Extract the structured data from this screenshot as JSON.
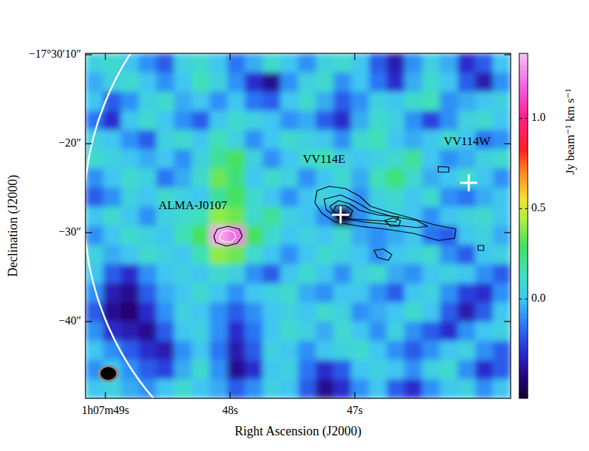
{
  "chart_data": {
    "type": "heatmap",
    "x_label": "Right Ascension (J2000)",
    "y_label": "Declination (J2000)",
    "xlim": [
      49.16,
      45.75
    ],
    "ylim": [
      -9.84,
      -48.64
    ],
    "xticks": [
      {
        "value": 49,
        "label": "1h07m49s"
      },
      {
        "value": 48,
        "label": "48s"
      },
      {
        "value": 47,
        "label": "47s"
      }
    ],
    "yticks": [
      {
        "value": -10,
        "label": "−17°30′10″"
      },
      {
        "value": -20,
        "label": "−20″"
      },
      {
        "value": -30,
        "label": "−30″"
      },
      {
        "value": -40,
        "label": "−40″"
      }
    ],
    "cells": [
      [
        0.05,
        0.1,
        0.0,
        -0.1,
        -0.2,
        0.05,
        0.1,
        0.0,
        -0.15,
        -0.05,
        0.1,
        0.0,
        -0.1,
        0.05,
        0.1,
        0.0,
        -0.2,
        -0.35,
        -0.1,
        0.05,
        -0.05,
        -0.3,
        -0.2,
        0.0
      ],
      [
        -0.05,
        0.05,
        0.1,
        0.0,
        -0.1,
        0.0,
        0.15,
        0.05,
        -0.1,
        -0.3,
        -0.4,
        -0.1,
        0.05,
        0.1,
        -0.1,
        0.0,
        -0.15,
        -0.3,
        -0.05,
        0.1,
        0.0,
        -0.2,
        -0.35,
        -0.1
      ],
      [
        0.0,
        -0.2,
        -0.1,
        0.05,
        0.1,
        -0.05,
        0.0,
        -0.1,
        0.0,
        -0.15,
        -0.2,
        0.0,
        0.1,
        -0.05,
        -0.2,
        -0.1,
        0.05,
        0.0,
        0.1,
        0.15,
        -0.1,
        -0.05,
        0.0,
        0.05
      ],
      [
        -0.15,
        -0.3,
        0.0,
        0.1,
        0.0,
        -0.1,
        -0.2,
        0.0,
        0.1,
        0.05,
        0.0,
        -0.1,
        -0.05,
        -0.2,
        -0.3,
        -0.05,
        0.1,
        0.05,
        -0.1,
        -0.25,
        -0.1,
        0.05,
        0.1,
        0.0
      ],
      [
        0.05,
        0.0,
        -0.1,
        -0.2,
        0.05,
        0.1,
        0.0,
        0.15,
        0.05,
        -0.1,
        0.0,
        0.1,
        0.05,
        0.0,
        -0.1,
        0.1,
        0.15,
        0.0,
        -0.05,
        0.0,
        0.1,
        0.0,
        -0.15,
        -0.1
      ],
      [
        0.1,
        0.05,
        0.0,
        -0.05,
        0.0,
        -0.1,
        0.05,
        0.2,
        0.3,
        0.05,
        -0.1,
        0.0,
        0.1,
        0.15,
        0.05,
        0.0,
        0.05,
        0.1,
        0.2,
        0.0,
        -0.1,
        -0.05,
        0.05,
        0.1
      ],
      [
        -0.1,
        0.0,
        0.1,
        0.05,
        -0.15,
        -0.05,
        0.1,
        0.35,
        0.25,
        0.0,
        0.1,
        0.05,
        -0.1,
        0.0,
        0.1,
        -0.05,
        0.15,
        0.25,
        0.1,
        -0.05,
        0.0,
        0.1,
        0.0,
        -0.1
      ],
      [
        -0.2,
        -0.1,
        0.05,
        0.0,
        0.1,
        0.05,
        0.0,
        0.2,
        0.3,
        0.1,
        0.0,
        -0.1,
        0.0,
        0.05,
        0.0,
        -0.1,
        0.05,
        0.1,
        0.0,
        0.1,
        -0.1,
        -0.15,
        -0.05,
        0.0
      ],
      [
        0.0,
        0.1,
        0.0,
        -0.1,
        0.05,
        0.1,
        0.15,
        0.4,
        0.35,
        0.1,
        0.2,
        0.05,
        0.0,
        -0.1,
        -0.5,
        -0.1,
        0.0,
        0.05,
        0.0,
        -0.1,
        0.0,
        0.05,
        0.1,
        0.0
      ],
      [
        -0.1,
        0.0,
        0.1,
        0.05,
        0.0,
        0.15,
        0.3,
        1.3,
        1.2,
        0.3,
        0.1,
        0.0,
        0.05,
        0.0,
        0.1,
        -0.05,
        -0.1,
        -0.05,
        0.0,
        -0.15,
        -0.2,
        0.0,
        0.05,
        -0.05
      ],
      [
        0.05,
        -0.05,
        0.0,
        0.1,
        0.05,
        0.0,
        0.15,
        0.4,
        0.35,
        0.1,
        0.0,
        -0.1,
        0.0,
        0.1,
        0.05,
        0.0,
        -0.1,
        0.0,
        0.05,
        0.1,
        -0.1,
        -0.2,
        0.0,
        0.05
      ],
      [
        0.0,
        -0.2,
        -0.3,
        -0.1,
        0.0,
        0.05,
        0.0,
        0.1,
        0.05,
        -0.1,
        -0.2,
        0.0,
        0.1,
        0.0,
        -0.1,
        0.05,
        0.1,
        -0.05,
        -0.1,
        0.0,
        0.05,
        0.0,
        -0.1,
        -0.2
      ],
      [
        -0.1,
        -0.35,
        -0.4,
        -0.2,
        -0.05,
        0.0,
        0.1,
        0.0,
        -0.1,
        0.0,
        0.05,
        0.1,
        -0.05,
        -0.1,
        0.0,
        0.0,
        -0.1,
        -0.2,
        0.0,
        0.05,
        -0.1,
        -0.25,
        -0.3,
        -0.1
      ],
      [
        -0.2,
        -0.4,
        -0.45,
        -0.3,
        -0.1,
        0.05,
        0.0,
        -0.1,
        -0.2,
        -0.1,
        0.0,
        0.05,
        0.0,
        0.1,
        0.05,
        -0.1,
        -0.05,
        0.0,
        0.1,
        0.0,
        -0.2,
        -0.35,
        -0.2,
        0.0
      ],
      [
        -0.1,
        -0.3,
        -0.35,
        -0.4,
        -0.2,
        0.0,
        0.05,
        -0.1,
        -0.3,
        -0.15,
        0.0,
        0.1,
        0.05,
        -0.05,
        0.1,
        0.0,
        -0.1,
        0.05,
        -0.1,
        -0.2,
        -0.3,
        -0.1,
        0.0,
        0.05
      ],
      [
        0.0,
        -0.1,
        -0.2,
        -0.3,
        -0.35,
        -0.1,
        0.0,
        -0.15,
        -0.35,
        -0.2,
        0.05,
        0.0,
        -0.1,
        0.0,
        0.05,
        0.1,
        0.0,
        -0.1,
        -0.2,
        -0.1,
        0.0,
        0.05,
        -0.1,
        -0.2
      ],
      [
        -0.1,
        0.0,
        -0.1,
        -0.2,
        -0.25,
        -0.05,
        0.1,
        -0.1,
        -0.4,
        -0.3,
        0.0,
        0.05,
        -0.15,
        -0.3,
        -0.2,
        0.0,
        0.05,
        0.0,
        -0.1,
        0.05,
        0.1,
        -0.1,
        -0.3,
        -0.2
      ],
      [
        0.0,
        0.05,
        -0.05,
        -0.1,
        0.0,
        0.1,
        0.0,
        -0.05,
        -0.2,
        -0.1,
        0.05,
        0.0,
        -0.2,
        -0.4,
        -0.3,
        -0.1,
        0.0,
        -0.2,
        -0.3,
        -0.1,
        0.0,
        0.05,
        -0.1,
        0.0
      ]
    ],
    "colorbar": {
      "label": "Jy beam⁻¹ km s⁻¹",
      "range": [
        -0.55,
        1.36
      ],
      "ticks": [
        {
          "value": 0,
          "label": "0.0"
        },
        0.5,
        {
          "value": 1,
          "label": "1.0"
        }
      ]
    },
    "contours": [
      {
        "color": "#000000",
        "points": [
          [
            47.303,
            -25.28
          ],
          [
            47.32,
            -26.64
          ],
          [
            47.263,
            -27.84
          ],
          [
            47.16,
            -28.8
          ],
          [
            46.96,
            -29.28
          ],
          [
            46.76,
            -29.6
          ],
          [
            46.531,
            -30.08
          ],
          [
            46.331,
            -30.88
          ],
          [
            46.2,
            -30.64
          ],
          [
            46.189,
            -29.6
          ],
          [
            46.36,
            -29.12
          ],
          [
            46.56,
            -28.32
          ],
          [
            46.731,
            -27.68
          ],
          [
            46.874,
            -27.04
          ],
          [
            46.96,
            -25.92
          ],
          [
            47.074,
            -25.04
          ],
          [
            47.206,
            -24.8
          ]
        ]
      },
      {
        "color": "#000000",
        "points": [
          [
            47.246,
            -26.24
          ],
          [
            47.229,
            -27.44
          ],
          [
            47.131,
            -28.32
          ],
          [
            46.931,
            -28.8
          ],
          [
            46.703,
            -29.12
          ],
          [
            46.503,
            -29.44
          ],
          [
            46.417,
            -29.28
          ],
          [
            46.503,
            -28.64
          ],
          [
            46.703,
            -28.16
          ],
          [
            46.874,
            -27.52
          ],
          [
            46.989,
            -26.56
          ],
          [
            47.114,
            -25.76
          ]
        ]
      },
      {
        "color": "#000000",
        "points": [
          [
            47.2,
            -27.04
          ],
          [
            47.16,
            -28.08
          ],
          [
            47.017,
            -28.48
          ],
          [
            46.817,
            -28.64
          ],
          [
            46.674,
            -28.8
          ],
          [
            46.646,
            -28.24
          ],
          [
            46.817,
            -28.0
          ],
          [
            46.96,
            -27.52
          ],
          [
            47.046,
            -26.72
          ],
          [
            47.131,
            -26.4
          ]
        ]
      },
      {
        "color": "#000000",
        "points": [
          [
            47.171,
            -27.52
          ],
          [
            47.114,
            -28.32
          ],
          [
            47.034,
            -28.16
          ],
          [
            47.017,
            -27.52
          ],
          [
            47.074,
            -26.96
          ],
          [
            47.149,
            -26.96
          ]
        ]
      },
      {
        "color": "#000000",
        "points": [
          [
            46.76,
            -28.64
          ],
          [
            46.714,
            -29.28
          ],
          [
            46.646,
            -29.28
          ],
          [
            46.634,
            -28.64
          ],
          [
            46.691,
            -28.32
          ]
        ]
      },
      {
        "color": "#000000",
        "points": [
          [
            46.846,
            -32.0
          ],
          [
            46.817,
            -32.8
          ],
          [
            46.731,
            -33.12
          ],
          [
            46.703,
            -32.48
          ],
          [
            46.771,
            -31.84
          ]
        ]
      },
      {
        "color": "#000000",
        "points": [
          [
            46.331,
            -22.56
          ],
          [
            46.331,
            -23.2
          ],
          [
            46.246,
            -23.2
          ],
          [
            46.246,
            -22.64
          ]
        ]
      },
      {
        "color": "#000000",
        "points": [
          [
            46.011,
            -31.44
          ],
          [
            46.011,
            -32.0
          ],
          [
            45.966,
            -32.0
          ],
          [
            45.966,
            -31.44
          ]
        ]
      },
      {
        "color": "#000000",
        "points": [
          [
            48.131,
            -30.4
          ],
          [
            48.103,
            -29.6
          ],
          [
            48.017,
            -29.28
          ],
          [
            47.926,
            -29.6
          ],
          [
            47.903,
            -30.4
          ],
          [
            47.943,
            -31.2
          ],
          [
            48.029,
            -31.52
          ],
          [
            48.114,
            -31.12
          ]
        ]
      },
      {
        "color": "#ffffff",
        "points": [
          [
            48.086,
            -30.48
          ],
          [
            48.063,
            -29.92
          ],
          [
            48.017,
            -29.76
          ],
          [
            47.966,
            -30.0
          ],
          [
            47.954,
            -30.56
          ],
          [
            47.989,
            -31.04
          ],
          [
            48.04,
            -31.04
          ],
          [
            48.074,
            -30.88
          ]
        ]
      }
    ],
    "markers": [
      {
        "x": 47.114,
        "y": -28.0,
        "marker": "cross",
        "color": "#ffffff"
      },
      {
        "x": 46.086,
        "y": -24.4,
        "marker": "cross",
        "color": "#ffffff"
      }
    ],
    "annotations": [
      {
        "text": "ALMA-J0107",
        "x": 48.3,
        "y": -27.04
      },
      {
        "text": "VV114E",
        "x": 47.246,
        "y": -21.84
      },
      {
        "text": "VV114W",
        "x": 46.1,
        "y": -19.84
      }
    ],
    "field_edge": {
      "x": 46.851,
      "y": -27.52,
      "radius": 32.5,
      "color": "#ffffff"
    },
    "beam": {
      "x": 48.977,
      "y": -45.84,
      "major": 1.76,
      "minor": 1.44
    }
  }
}
